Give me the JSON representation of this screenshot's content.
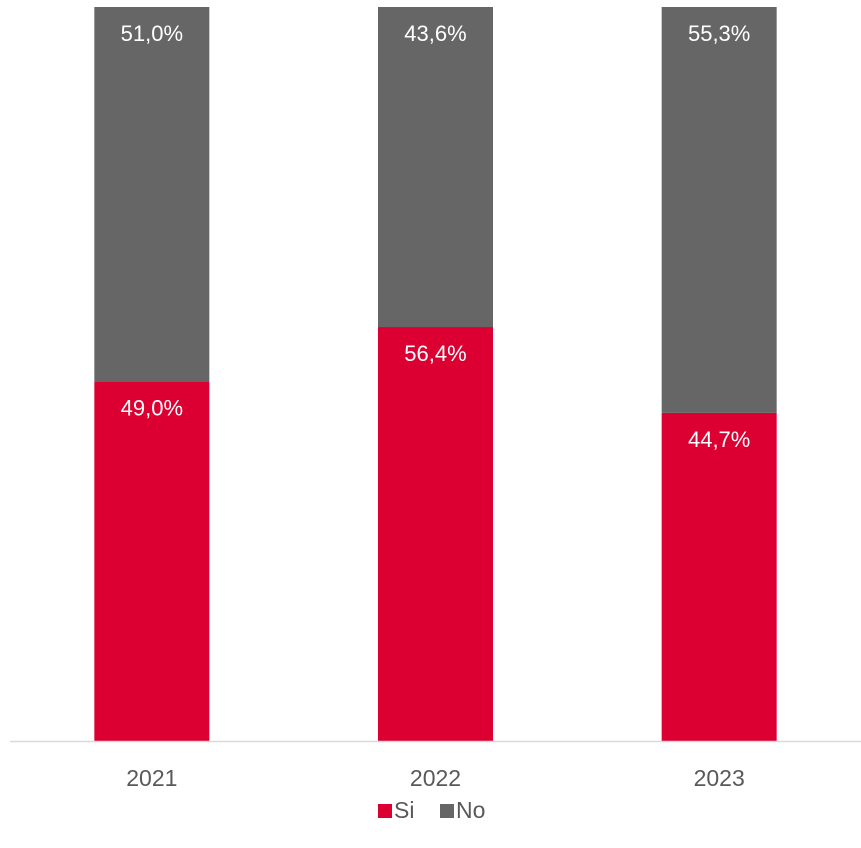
{
  "chart_data": {
    "type": "bar",
    "stacked": true,
    "normalized": true,
    "categories": [
      "2021",
      "2022",
      "2023"
    ],
    "series": [
      {
        "name": "Si",
        "color": "#dc0032",
        "values": [
          49.0,
          56.4,
          44.7
        ],
        "labels": [
          "49,0%",
          "56,4%",
          "44,7%"
        ]
      },
      {
        "name": "No",
        "color": "#666666",
        "values": [
          51.0,
          43.6,
          55.3
        ],
        "labels": [
          "51,0%",
          "43,6%",
          "55,3%"
        ]
      }
    ],
    "ylim": [
      0,
      100
    ],
    "y_unit": "%",
    "grid": false,
    "y_axis_visible": false,
    "legend_position": "bottom",
    "title": "",
    "xlabel": "",
    "ylabel": ""
  }
}
